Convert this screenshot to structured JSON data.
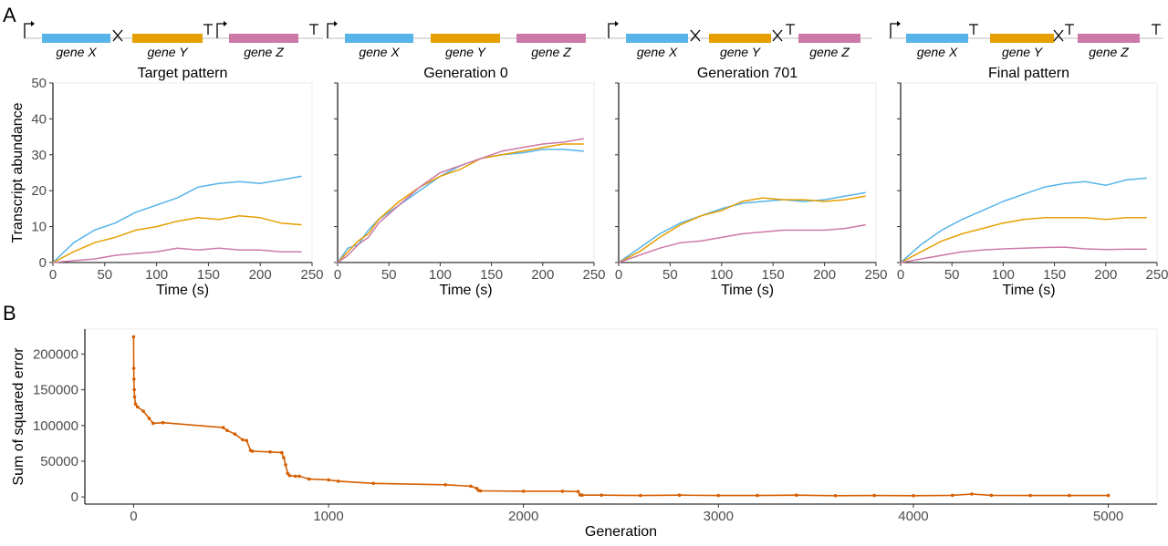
{
  "panel_labels": [
    "A",
    "B"
  ],
  "colors": {
    "x": "#56B4E9",
    "y": "#E69F00",
    "z": "#CC79A7",
    "sse": "#D55E00"
  },
  "gene_names": [
    "gene X",
    "gene Y",
    "gene Z"
  ],
  "diagram_glyphs": {
    "promoter": "promoter-icon",
    "terminator": "terminator-icon",
    "repressor": "repression-icon"
  },
  "chart_data": [
    {
      "type": "line",
      "title": "Target pattern",
      "xlabel": "Time (s)",
      "ylabel": "Transcript abundance",
      "xlim": [
        0,
        250
      ],
      "ylim": [
        0,
        50
      ],
      "xticks": [
        "0",
        "50",
        "100",
        "150",
        "200",
        "250"
      ],
      "yticks": [
        "0",
        "10",
        "20",
        "30",
        "40",
        "50"
      ],
      "series": [
        {
          "key": "x",
          "x": [
            0,
            20,
            40,
            60,
            80,
            100,
            120,
            140,
            160,
            180,
            200,
            220,
            240
          ],
          "values": [
            0,
            5.5,
            9,
            11,
            14,
            16,
            18,
            21,
            22,
            22.5,
            22,
            23,
            24
          ]
        },
        {
          "key": "y",
          "x": [
            0,
            20,
            40,
            60,
            80,
            100,
            120,
            140,
            160,
            180,
            200,
            220,
            240
          ],
          "values": [
            0,
            3,
            5.5,
            7,
            9,
            10,
            11.5,
            12.5,
            12,
            13,
            12.5,
            11,
            10.5
          ]
        },
        {
          "key": "z",
          "x": [
            0,
            20,
            40,
            60,
            80,
            100,
            120,
            140,
            160,
            180,
            200,
            220,
            240
          ],
          "values": [
            0,
            0.5,
            1,
            2,
            2.5,
            3,
            4,
            3.5,
            4,
            3.5,
            3.5,
            3,
            3
          ]
        }
      ]
    },
    {
      "type": "line",
      "title": "Generation 0",
      "xlabel": "Time (s)",
      "ylabel": "",
      "xlim": [
        0,
        250
      ],
      "ylim": [
        0,
        50
      ],
      "xticks": [
        "0",
        "50",
        "100",
        "150",
        "200",
        "250"
      ],
      "yticks": [],
      "series": [
        {
          "key": "x",
          "x": [
            0,
            10,
            20,
            30,
            40,
            60,
            80,
            100,
            120,
            140,
            160,
            180,
            200,
            220,
            240
          ],
          "values": [
            0,
            4,
            5,
            9,
            12,
            16,
            20,
            24,
            27,
            29,
            30,
            30.5,
            31.5,
            31.5,
            31
          ]
        },
        {
          "key": "y",
          "x": [
            0,
            10,
            20,
            30,
            40,
            60,
            80,
            100,
            120,
            140,
            160,
            180,
            200,
            220,
            240
          ],
          "values": [
            0,
            3,
            6,
            8,
            12,
            17,
            21,
            24,
            26,
            29,
            30,
            31,
            32,
            33,
            33
          ]
        },
        {
          "key": "z",
          "x": [
            0,
            10,
            20,
            30,
            40,
            60,
            80,
            100,
            120,
            140,
            160,
            180,
            200,
            220,
            240
          ],
          "values": [
            0,
            2,
            5,
            7,
            11,
            16,
            21,
            25,
            27,
            29,
            31,
            32,
            33,
            33.5,
            34.5
          ]
        }
      ]
    },
    {
      "type": "line",
      "title": "Generation 701",
      "xlabel": "Time (s)",
      "ylabel": "",
      "xlim": [
        0,
        250
      ],
      "ylim": [
        0,
        50
      ],
      "xticks": [
        "0",
        "50",
        "100",
        "150",
        "200",
        "250"
      ],
      "yticks": [],
      "series": [
        {
          "key": "x",
          "x": [
            0,
            20,
            40,
            60,
            80,
            100,
            120,
            140,
            160,
            180,
            200,
            220,
            240
          ],
          "values": [
            0,
            4,
            8,
            11,
            13,
            15,
            16.5,
            17,
            17.5,
            17,
            17.5,
            18.5,
            19.5
          ]
        },
        {
          "key": "y",
          "x": [
            0,
            20,
            40,
            60,
            80,
            100,
            120,
            140,
            160,
            180,
            200,
            220,
            240
          ],
          "values": [
            0,
            3,
            7,
            10.5,
            13,
            14.5,
            17,
            18,
            17.5,
            17.5,
            17,
            17.5,
            18.5
          ]
        },
        {
          "key": "z",
          "x": [
            0,
            20,
            40,
            60,
            80,
            100,
            120,
            140,
            160,
            180,
            200,
            220,
            240
          ],
          "values": [
            0,
            2,
            4,
            5.5,
            6,
            7,
            8,
            8.5,
            9,
            9,
            9,
            9.5,
            10.5
          ]
        }
      ]
    },
    {
      "type": "line",
      "title": "Final pattern",
      "xlabel": "Time (s)",
      "ylabel": "",
      "xlim": [
        0,
        250
      ],
      "ylim": [
        0,
        50
      ],
      "xticks": [
        "0",
        "50",
        "100",
        "150",
        "200",
        "250"
      ],
      "yticks": [],
      "series": [
        {
          "key": "x",
          "x": [
            0,
            20,
            40,
            60,
            80,
            100,
            120,
            140,
            160,
            180,
            200,
            220,
            240
          ],
          "values": [
            0,
            5,
            9,
            12,
            14.5,
            17,
            19,
            21,
            22,
            22.5,
            21.5,
            23,
            23.5
          ]
        },
        {
          "key": "y",
          "x": [
            0,
            20,
            40,
            60,
            80,
            100,
            120,
            140,
            160,
            180,
            200,
            220,
            240
          ],
          "values": [
            0,
            3,
            6,
            8,
            9.5,
            11,
            12,
            12.5,
            12.5,
            12.5,
            12,
            12.5,
            12.5
          ]
        },
        {
          "key": "z",
          "x": [
            0,
            20,
            40,
            60,
            80,
            100,
            120,
            140,
            160,
            180,
            200,
            220,
            240
          ],
          "values": [
            0,
            1,
            2,
            3,
            3.5,
            3.8,
            4,
            4.2,
            4.3,
            3.8,
            3.6,
            3.7,
            3.7
          ]
        }
      ]
    },
    {
      "type": "line",
      "title": "",
      "xlabel": "Generation",
      "ylabel": "Sum of squared error",
      "xlim": [
        -250,
        5250
      ],
      "ylim": [
        -10000,
        235000
      ],
      "xticks": [
        "0",
        "1000",
        "2000",
        "3000",
        "4000",
        "5000"
      ],
      "yticks": [
        "0",
        "50000",
        "100000",
        "150000",
        "200000"
      ],
      "series": [
        {
          "key": "sse",
          "x": [
            0,
            1,
            2,
            3,
            5,
            10,
            20,
            50,
            80,
            100,
            150,
            460,
            480,
            520,
            560,
            580,
            600,
            610,
            700,
            760,
            770,
            780,
            790,
            800,
            830,
            850,
            900,
            1000,
            1050,
            1230,
            1600,
            1730,
            1760,
            1770,
            1780,
            2000,
            2200,
            2280,
            2290,
            2300,
            2400,
            2600,
            2800,
            3000,
            3200,
            3400,
            3600,
            3800,
            4000,
            4200,
            4300,
            4400,
            4600,
            4800,
            5000
          ],
          "values": [
            224000,
            180000,
            165000,
            150000,
            140000,
            130000,
            126000,
            120000,
            110000,
            103000,
            104000,
            97000,
            93000,
            88000,
            80000,
            79000,
            65000,
            64000,
            63000,
            62000,
            55000,
            45000,
            33000,
            30000,
            29000,
            29000,
            25000,
            24000,
            22000,
            19000,
            17000,
            15000,
            12000,
            9000,
            8500,
            8000,
            8000,
            7500,
            3000,
            2500,
            2500,
            2000,
            2500,
            2000,
            2000,
            2500,
            1800,
            2000,
            1800,
            2200,
            4000,
            2200,
            2000,
            2000,
            2000
          ]
        }
      ]
    }
  ]
}
